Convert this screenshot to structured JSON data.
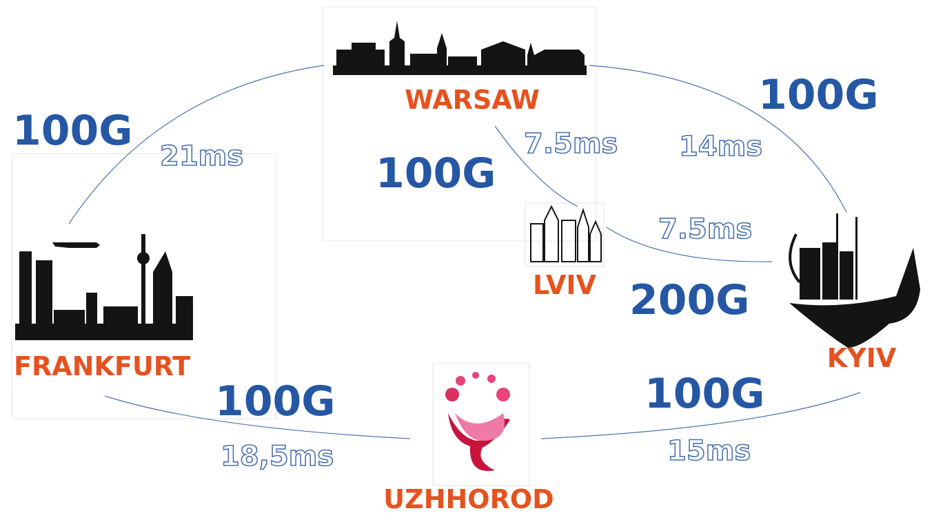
{
  "nodes": [
    {
      "label": "WARSAW"
    },
    {
      "label": "FRANKFURT"
    },
    {
      "label": "LVIV"
    },
    {
      "label": "KYIV"
    },
    {
      "label": "UZHHOROD"
    }
  ],
  "links": [
    {
      "bandwidth": "100G",
      "latency": "21ms"
    },
    {
      "bandwidth": "100G",
      "latency": "14ms"
    },
    {
      "bandwidth": "100G",
      "latency": "7.5ms"
    },
    {
      "bandwidth": "200G",
      "latency": "7.5ms"
    },
    {
      "bandwidth": "100G",
      "latency": "18,5ms"
    },
    {
      "bandwidth": "100G",
      "latency": "15ms"
    }
  ]
}
